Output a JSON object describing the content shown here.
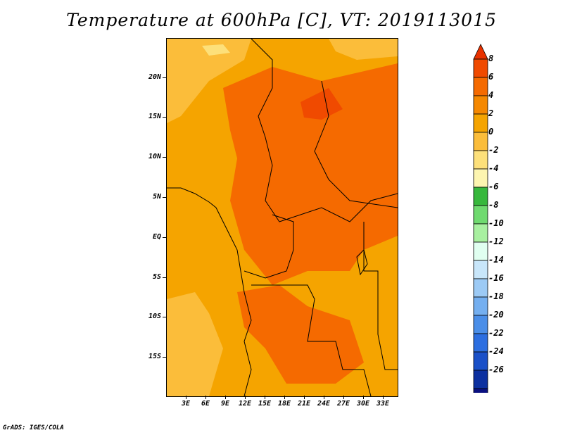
{
  "title": "Temperature at 600hPa [C], VT: 2019113015",
  "credit": "GrADS: IGES/COLA",
  "map": {
    "lat_labels": [
      "20N",
      "15N",
      "10N",
      "5N",
      "EQ",
      "5S",
      "10S",
      "15S"
    ],
    "lon_labels": [
      "3E",
      "6E",
      "9E",
      "12E",
      "15E",
      "18E",
      "21E",
      "24E",
      "27E",
      "30E",
      "33E"
    ]
  },
  "colorbar": {
    "labels": [
      "8",
      "6",
      "4",
      "2",
      "0",
      "-2",
      "-4",
      "-6",
      "-8",
      "-10",
      "-12",
      "-14",
      "-16",
      "-18",
      "-20",
      "-22",
      "-24",
      "-26"
    ],
    "colors": [
      "#e83200",
      "#f04a00",
      "#f56a00",
      "#f58800",
      "#f5a400",
      "#fbbd3a",
      "#fde07a",
      "#fdf5b0",
      "#37b83c",
      "#6fda6f",
      "#a8f0a0",
      "#e0fff0",
      "#c8e6fa",
      "#9ccaf5",
      "#74aff0",
      "#4a8ee8",
      "#2c6ee0",
      "#1a50c8",
      "#0c30a0",
      "#0a1080",
      "#d8dcfc"
    ]
  }
}
